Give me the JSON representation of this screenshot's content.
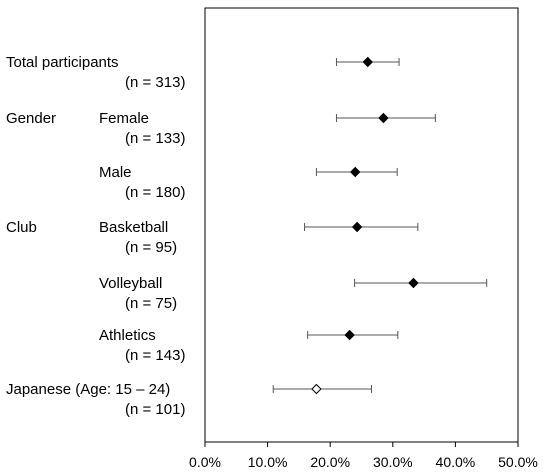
{
  "chart_data": {
    "type": "forest",
    "xlim": [
      0,
      50
    ],
    "x_ticks": [
      "0.0%",
      "10.0%",
      "20.0%",
      "30.0%",
      "40.0%",
      "50.0%"
    ],
    "grid": false,
    "rows": [
      {
        "group": "Total participants",
        "label": "",
        "n": "(n = 313)",
        "value": 26.0,
        "low": 21.0,
        "high": 31.0,
        "marker": "filled"
      },
      {
        "group": "Gender",
        "label": "Female",
        "n": "(n = 133)",
        "value": 28.5,
        "low": 21.0,
        "high": 36.8,
        "marker": "filled"
      },
      {
        "group": "",
        "label": "Male",
        "n": "(n = 180)",
        "value": 24.0,
        "low": 17.8,
        "high": 30.7,
        "marker": "filled"
      },
      {
        "group": "Club",
        "label": "Basketball",
        "n": "(n = 95)",
        "value": 24.3,
        "low": 15.9,
        "high": 34.0,
        "marker": "filled"
      },
      {
        "group": "",
        "label": "Volleyball",
        "n": "(n = 75)",
        "value": 33.3,
        "low": 23.9,
        "high": 45.0,
        "marker": "filled"
      },
      {
        "group": "",
        "label": "Athletics",
        "n": "(n = 143)",
        "value": 23.1,
        "low": 16.4,
        "high": 30.8,
        "marker": "filled"
      },
      {
        "group": "Japanese (Age: 15 – 24)",
        "label": "",
        "n": "(n = 101)",
        "value": 17.8,
        "low": 10.9,
        "high": 26.6,
        "marker": "open"
      }
    ]
  }
}
